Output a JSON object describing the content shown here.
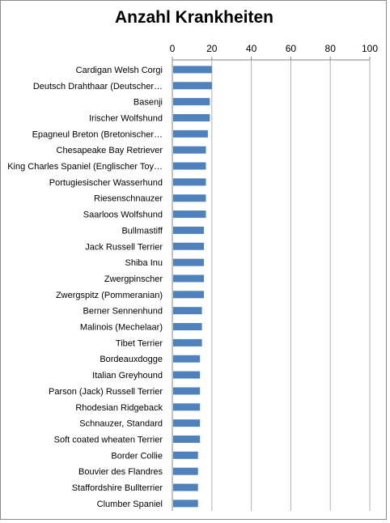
{
  "chart_data": {
    "type": "bar",
    "orientation": "horizontal",
    "title": "Anzahl Krankheiten",
    "xlim": [
      0,
      100
    ],
    "xticks": [
      0,
      20,
      40,
      60,
      80,
      100
    ],
    "x_axis_position": "top",
    "grid": "vertical major gridlines",
    "bar_color": "#4f81bd",
    "categories": [
      "Cardigan Welsh Corgi",
      "Deutsch Drahthaar (Deutscher…",
      "Basenji",
      "Irischer Wolfshund",
      "Epagneul Breton (Bretonischer…",
      "Chesapeake Bay Retriever",
      "King Charles Spaniel (Englischer Toy…",
      "Portugiesischer Wasserhund",
      "Riesenschnauzer",
      "Saarloos Wolfshund",
      "Bullmastiff",
      "Jack Russell Terrier",
      "Shiba Inu",
      "Zwergpinscher",
      "Zwergspitz (Pommeranian)",
      "Berner Sennenhund",
      "Malinois (Mechelaar)",
      "Tibet Terrier",
      "Bordeauxdogge",
      "Italian Greyhound",
      "Parson (Jack) Russell Terrier",
      "Rhodesian Ridgeback",
      "Schnauzer, Standard",
      "Soft coated wheaten Terrier",
      "Border Collie",
      "Bouvier des Flandres",
      "Staffordshire Bullterrier",
      "Clumber Spaniel"
    ],
    "values": [
      20,
      20,
      19,
      19,
      18,
      17,
      17,
      17,
      17,
      17,
      16,
      16,
      16,
      16,
      16,
      15,
      15,
      15,
      14,
      14,
      14,
      14,
      14,
      14,
      13,
      13,
      13,
      13
    ]
  }
}
